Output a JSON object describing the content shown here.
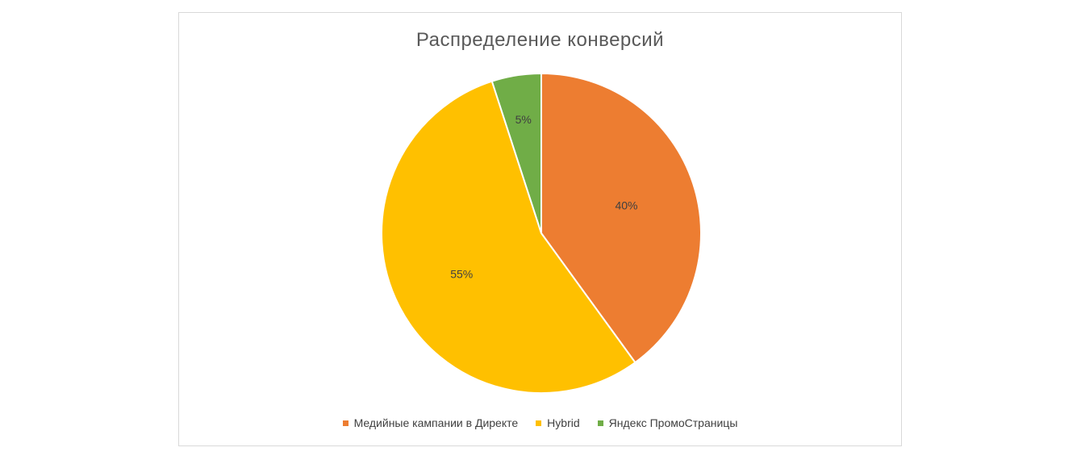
{
  "chart_data": {
    "type": "pie",
    "title": "Распределение конверсий",
    "slices": [
      {
        "name": "Медийные кампании в Директе",
        "value": 40,
        "label": "40%",
        "color": "#ed7d31"
      },
      {
        "name": "Hybrid",
        "value": 55,
        "label": "55%",
        "color": "#ffc000"
      },
      {
        "name": "Яндекс ПромоСтраницы",
        "value": 5,
        "label": "5%",
        "color": "#70ad47"
      }
    ],
    "legend_position": "bottom",
    "start_angle": "top, clockwise"
  }
}
